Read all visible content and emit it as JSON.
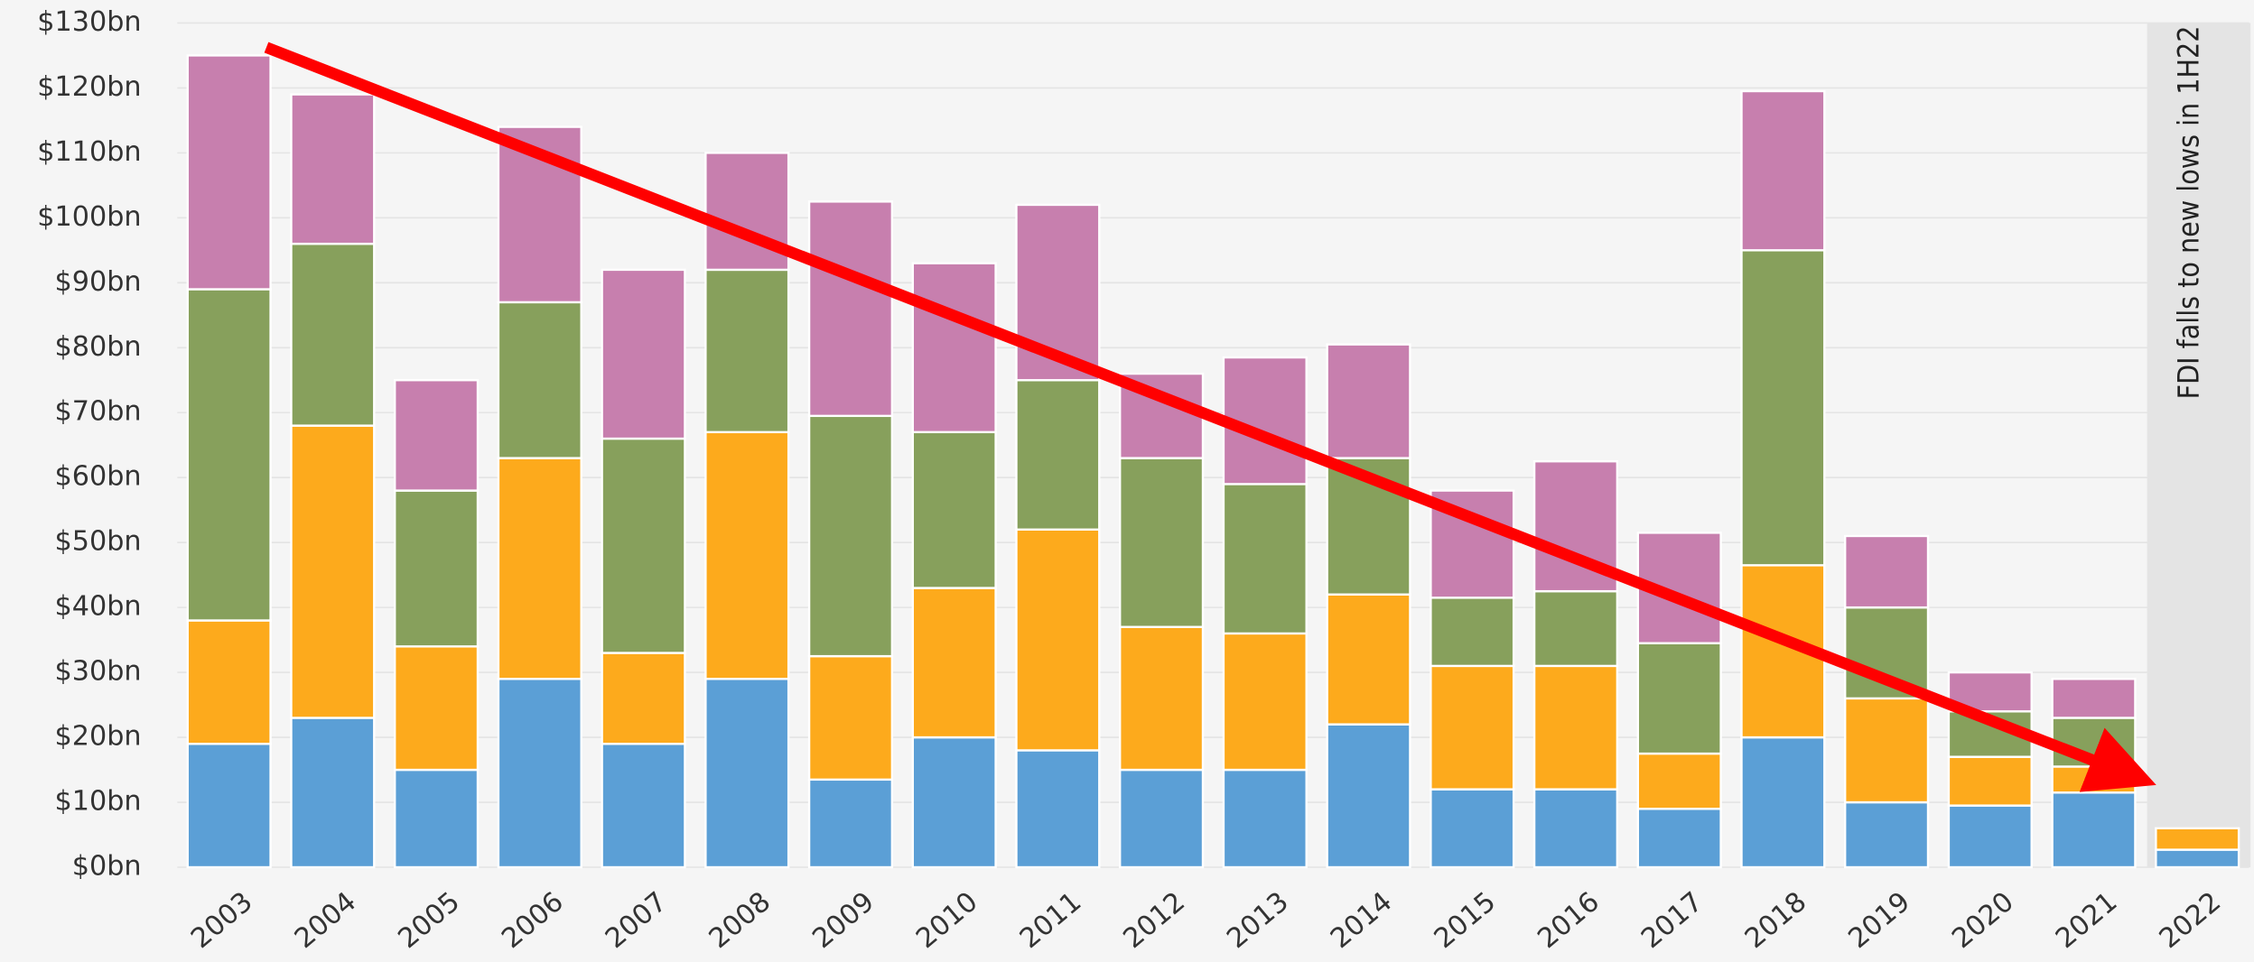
{
  "chart_data": {
    "type": "stacked_bar",
    "annotation": "FDI falls to new lows in 1H22",
    "categories": [
      "2003",
      "2004",
      "2005",
      "2006",
      "2007",
      "2008",
      "2009",
      "2010",
      "2011",
      "2012",
      "2013",
      "2014",
      "2015",
      "2016",
      "2017",
      "2018",
      "2019",
      "2020",
      "2021",
      "2022"
    ],
    "series": [
      {
        "color": "#5b9fd6",
        "values": [
          19,
          23,
          15,
          29,
          19,
          29,
          13.5,
          20,
          18,
          15,
          15,
          22,
          12,
          12,
          9,
          20,
          10,
          9.5,
          11.5,
          2.7
        ]
      },
      {
        "color": "#fdaa1c",
        "values": [
          19,
          45,
          19,
          34,
          14,
          38,
          19,
          23,
          34,
          22,
          21,
          20,
          19,
          19,
          8.5,
          26.5,
          16,
          7.5,
          4,
          3.3
        ]
      },
      {
        "color": "#87a05c",
        "values": [
          51,
          28,
          24,
          24,
          33,
          25,
          37,
          24,
          23,
          26,
          23,
          21,
          10.5,
          11.5,
          17,
          48.5,
          14,
          7,
          7.5,
          null
        ]
      },
      {
        "color": "#c77fae",
        "values": [
          36,
          23,
          17,
          27,
          26,
          18,
          33,
          26,
          27,
          13,
          19.5,
          17.5,
          16.5,
          20,
          17,
          24.5,
          11,
          6,
          6,
          null
        ]
      }
    ],
    "ylim": [
      0,
      130
    ],
    "yticks": [
      {
        "value": 0,
        "label": "$0bn"
      },
      {
        "value": 10,
        "label": "$10bn"
      },
      {
        "value": 20,
        "label": "$20bn"
      },
      {
        "value": 30,
        "label": "$30bn"
      },
      {
        "value": 40,
        "label": "$40bn"
      },
      {
        "value": 50,
        "label": "$50bn"
      },
      {
        "value": 60,
        "label": "$60bn"
      },
      {
        "value": 70,
        "label": "$70bn"
      },
      {
        "value": 80,
        "label": "$80bn"
      },
      {
        "value": 90,
        "label": "$90bn"
      },
      {
        "value": 100,
        "label": "$100bn"
      },
      {
        "value": 110,
        "label": "$110bn"
      },
      {
        "value": 120,
        "label": "$120bn"
      },
      {
        "value": 130,
        "label": "$130bn"
      }
    ],
    "grid": true
  }
}
